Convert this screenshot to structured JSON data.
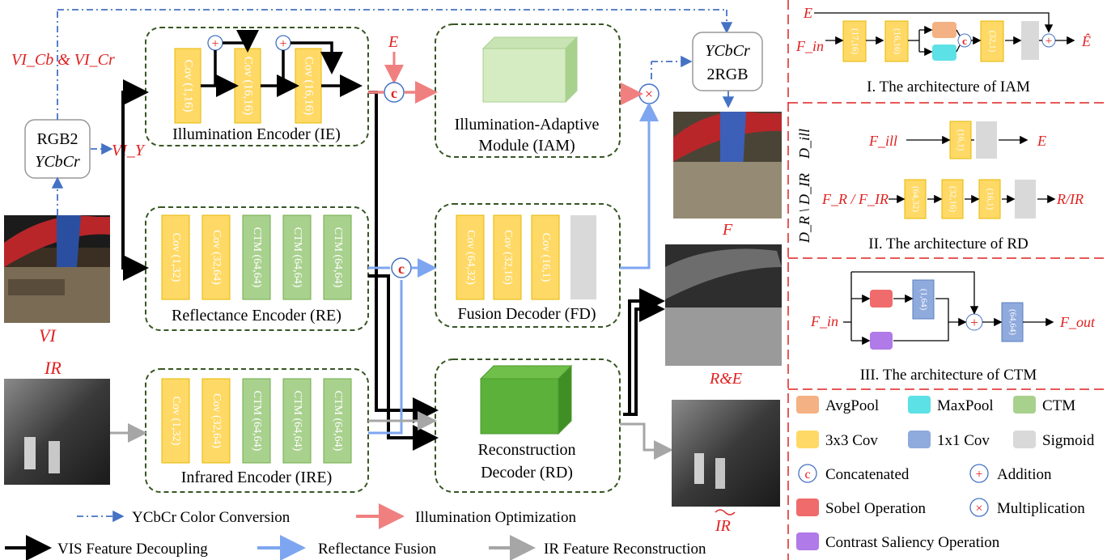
{
  "inputs": {
    "vi_label": "VI",
    "ir_label": "IR",
    "vi_cb_cr": "VI_Cb & VI_Cr",
    "vi_y": "VI_Y",
    "e_label": "E"
  },
  "rgb2ycbcr": {
    "line1": "RGB2",
    "line2": "YCbCr"
  },
  "ycbcr2rgb": {
    "line1": "YCbCr",
    "line2": "2RGB"
  },
  "encoders": {
    "ie": {
      "title": "Illumination  Encoder (IE)",
      "layers": [
        "Cov (1,16)",
        "Cov (16,16)",
        "Cov (16,16)"
      ]
    },
    "re": {
      "title": "Reflectance Encoder (RE)",
      "layers": [
        "Cov (1,32)",
        "Cov (32,64)",
        "CTM (64,64)",
        "CTM (64,64)",
        "CTM (64,64)"
      ]
    },
    "ire": {
      "title": "Infrared Encoder (IRE)",
      "layers": [
        "Cov (1,32)",
        "Cov (32,64)",
        "CTM (64,64)",
        "CTM (64,64)",
        "CTM (64,64)"
      ]
    }
  },
  "iam": {
    "line1": "Illumination-Adaptive",
    "line2": "Module (IAM)"
  },
  "fd": {
    "title": "Fusion Decoder (FD)",
    "layers": [
      "Cov (64,32)",
      "Cov (32,16)",
      "Cov (16,1)"
    ]
  },
  "rd": {
    "line1": "Reconstruction",
    "line2": "Decoder (RD)"
  },
  "outputs": {
    "f": "F",
    "re": "R&E",
    "ir_hat": "IR"
  },
  "legend_bottom": [
    {
      "label": "YCbCr Color Conversion",
      "color": "#4472c4",
      "style": "dashdot"
    },
    {
      "label": "Illumination Optimization",
      "color": "#f08080",
      "style": "solid"
    },
    {
      "label": "VIS  Feature Decoupling",
      "color": "#000000",
      "style": "solid"
    },
    {
      "label": "Reflectance Fusion",
      "color": "#7ea6f0",
      "style": "solid"
    },
    {
      "label": "IR Feature Reconstruction",
      "color": "#a6a6a6",
      "style": "solid"
    }
  ],
  "panel_iam": {
    "caption": "I.  The architecture of IAM",
    "e_in": "E",
    "f_in": "F_in",
    "e_hat": "Ê",
    "layers": [
      "(17,16)",
      "(16,16)",
      "(32,1)"
    ]
  },
  "panel_rd": {
    "caption": "II.  The architecture  of RD",
    "d_ill": "D_ill",
    "d_r_ir": "D_R \\ D_IR",
    "f_ill": "F_ill",
    "e_out": "E",
    "f_r_ir": "F_R / F_IR",
    "r_ir": "R/IR",
    "row1_layers": [
      "(16,1)"
    ],
    "row2_layers": [
      "(64,32)",
      "(32,16)",
      "(16,1)"
    ]
  },
  "panel_ctm": {
    "caption": "III.  The architecture  of CTM",
    "f_in": "F_in",
    "f_out": "F_out",
    "layers": [
      "(1,64)",
      "(64,64)"
    ]
  },
  "legend_panel": [
    {
      "label": "AvgPool",
      "color": "#f4b183"
    },
    {
      "label": "MaxPool",
      "color": "#5ce1e6"
    },
    {
      "label": "CTM",
      "color": "#a9d18e"
    },
    {
      "label": "3x3 Cov",
      "color": "#ffd966"
    },
    {
      "label": "1x1 Cov",
      "color": "#8faadc"
    },
    {
      "label": "Sigmoid",
      "color": "#d9d9d9"
    },
    {
      "label": "Concatenated",
      "symbol": "c"
    },
    {
      "label": "Addition",
      "symbol": "+"
    },
    {
      "label": "Sobel Operation",
      "color": "#f06b6b"
    },
    {
      "label": "Multiplication",
      "symbol": "×"
    },
    {
      "label": "Contrast Saliency Operation",
      "color": "#b07ae8"
    }
  ]
}
